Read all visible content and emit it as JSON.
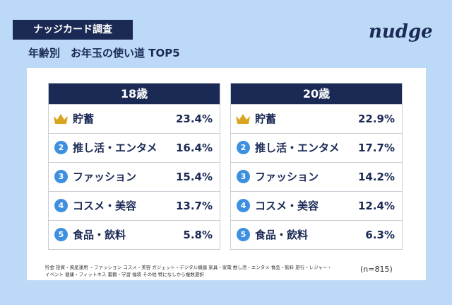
{
  "header": {
    "badge": "ナッジカード調査",
    "title": "年齢別　お年玉の使い道 TOP5",
    "logo": "nudge"
  },
  "panels": [
    {
      "title": "18歳",
      "rows": [
        {
          "label": "貯蓄",
          "value": "23.4%"
        },
        {
          "rank": "2",
          "label": "推し活・エンタメ",
          "value": "16.4%"
        },
        {
          "rank": "3",
          "label": "ファッション",
          "value": "15.4%"
        },
        {
          "rank": "4",
          "label": "コスメ・美容",
          "value": "13.7%"
        },
        {
          "rank": "5",
          "label": "食品・飲料",
          "value": "5.8%"
        }
      ]
    },
    {
      "title": "20歳",
      "rows": [
        {
          "label": "貯蓄",
          "value": "22.9%"
        },
        {
          "rank": "2",
          "label": "推し活・エンタメ",
          "value": "17.7%"
        },
        {
          "rank": "3",
          "label": "ファッション",
          "value": "14.2%"
        },
        {
          "rank": "4",
          "label": "コスメ・美容",
          "value": "12.4%"
        },
        {
          "rank": "5",
          "label": "食品・飲料",
          "value": "6.3%"
        }
      ]
    }
  ],
  "footnote": {
    "lines": [
      "貯金 投資・資産運用 ・ファッション コスメ・美容 ガジェット・デジタル機器 家具・家電 推し活・エンタメ 食品・飲料 旅行・レジャー・",
      "イベント 健康・フィットネス 書籍・学習 福袋 その他 特になしから複数選択"
    ],
    "sample": "(n=815)"
  }
}
